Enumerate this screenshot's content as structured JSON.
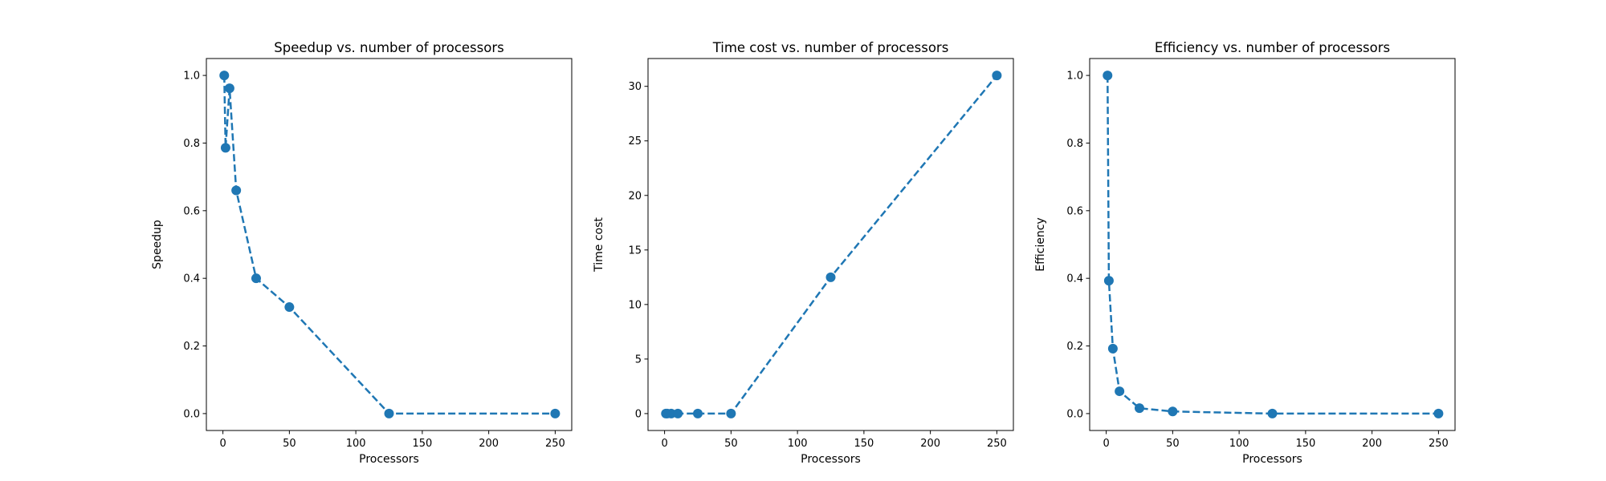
{
  "chart_data": [
    {
      "type": "line",
      "title": "Speedup vs. number of processors",
      "xlabel": "Processors",
      "ylabel": "Speedup",
      "xlim": [
        -12.45,
        262.45
      ],
      "ylim": [
        -0.05,
        1.05
      ],
      "xticks": [
        0,
        50,
        100,
        150,
        200,
        250
      ],
      "xtick_labels": [
        "0",
        "50",
        "100",
        "150",
        "200",
        "250"
      ],
      "yticks": [
        0.0,
        0.2,
        0.4,
        0.6,
        0.8,
        1.0
      ],
      "ytick_labels": [
        "0.0",
        "0.2",
        "0.4",
        "0.6",
        "0.8",
        "1.0"
      ],
      "grid": false,
      "color": "#1f77b4",
      "line_style": "dashed",
      "marker": "circle",
      "series": [
        {
          "x": [
            1,
            2,
            5,
            10,
            25,
            50,
            125,
            250
          ],
          "y": [
            1.0,
            0.786,
            0.962,
            0.66,
            0.4,
            0.315,
            0.0,
            0.0
          ]
        }
      ]
    },
    {
      "type": "line",
      "title": "Time cost vs. number of processors",
      "xlabel": "Processors",
      "ylabel": "Time cost",
      "xlim": [
        -12.45,
        262.45
      ],
      "ylim": [
        -1.55,
        32.55
      ],
      "xticks": [
        0,
        50,
        100,
        150,
        200,
        250
      ],
      "xtick_labels": [
        "0",
        "50",
        "100",
        "150",
        "200",
        "250"
      ],
      "yticks": [
        0,
        5,
        10,
        15,
        20,
        25,
        30
      ],
      "ytick_labels": [
        "0",
        "5",
        "10",
        "15",
        "20",
        "25",
        "30"
      ],
      "grid": false,
      "color": "#1f77b4",
      "line_style": "dashed",
      "marker": "circle",
      "series": [
        {
          "x": [
            1,
            2,
            5,
            10,
            25,
            50,
            125,
            250
          ],
          "y": [
            0.0,
            0.0,
            0.0,
            0.0,
            0.0,
            0.0,
            12.5,
            31.0
          ]
        }
      ]
    },
    {
      "type": "line",
      "title": "Efficiency vs. number of processors",
      "xlabel": "Processors",
      "ylabel": "Efficiency",
      "xlim": [
        -12.45,
        262.45
      ],
      "ylim": [
        -0.05,
        1.05
      ],
      "xticks": [
        0,
        50,
        100,
        150,
        200,
        250
      ],
      "xtick_labels": [
        "0",
        "50",
        "100",
        "150",
        "200",
        "250"
      ],
      "yticks": [
        0.0,
        0.2,
        0.4,
        0.6,
        0.8,
        1.0
      ],
      "ytick_labels": [
        "0.0",
        "0.2",
        "0.4",
        "0.6",
        "0.8",
        "1.0"
      ],
      "grid": false,
      "color": "#1f77b4",
      "line_style": "dashed",
      "marker": "circle",
      "series": [
        {
          "x": [
            1,
            2,
            5,
            10,
            25,
            50,
            125,
            250
          ],
          "y": [
            1.0,
            0.393,
            0.192,
            0.066,
            0.016,
            0.0063,
            0.0,
            0.0
          ]
        }
      ]
    }
  ]
}
